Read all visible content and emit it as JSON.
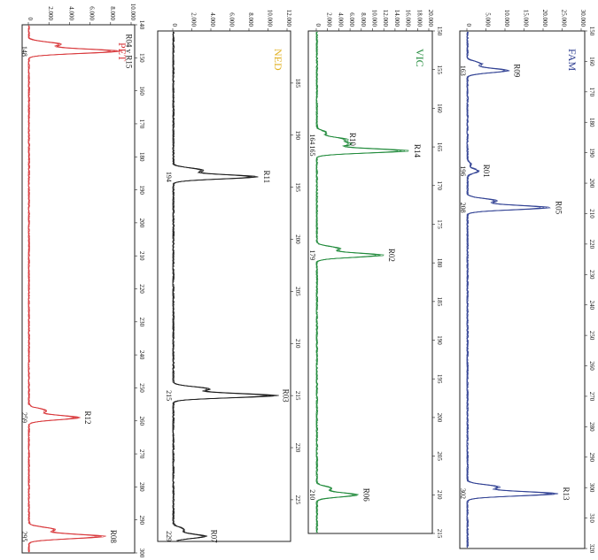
{
  "chart_data": [
    {
      "type": "line",
      "dye": "FAM",
      "color": "#2f3f92",
      "x_ticks": [
        "150",
        "160",
        "170",
        "180",
        "190",
        "200",
        "210",
        "220",
        "230",
        "240",
        "250",
        "260",
        "270",
        "280",
        "290",
        "300",
        "310",
        "320"
      ],
      "y_ticks": [
        "0",
        "5.000",
        "10.000",
        "15.000",
        "20.000",
        "25.000",
        "30.000"
      ],
      "xlim": [
        150,
        320
      ],
      "ylim": [
        0,
        30000
      ],
      "peaks": [
        {
          "marker": "R09",
          "size": "163",
          "x": 163,
          "height": 11000
        },
        {
          "marker": "R01",
          "size": "196",
          "x": 196,
          "height": 3000
        },
        {
          "marker": "R05",
          "size": "208",
          "x": 208,
          "height": 22000
        },
        {
          "marker": "R13",
          "size": "302",
          "x": 302,
          "height": 24000
        }
      ]
    },
    {
      "type": "line",
      "dye": "VIC",
      "color": "#1f8a3a",
      "x_ticks": [
        "150",
        "155",
        "160",
        "165",
        "170",
        "175",
        "180",
        "185",
        "190",
        "195",
        "200",
        "205",
        "210",
        "215"
      ],
      "y_ticks": [
        "0",
        "2.000",
        "4.000",
        "6.000",
        "8.000",
        "10.000",
        "12.000",
        "14.000",
        "16.000",
        "18.000",
        "20.000"
      ],
      "xlim": [
        150,
        215
      ],
      "ylim": [
        0,
        20000
      ],
      "peaks": [
        {
          "marker": "R10",
          "size": "164",
          "x": 164,
          "height": 5000
        },
        {
          "marker": "R14",
          "size": "165",
          "x": 165.5,
          "height": 16500
        },
        {
          "marker": "R02",
          "size": "179",
          "x": 179,
          "height": 12000
        },
        {
          "marker": "R06",
          "size": "210",
          "x": 210,
          "height": 7500
        }
      ]
    },
    {
      "type": "line",
      "dye": "NED",
      "color": "#1a1a1a",
      "title_color": "#e0b020",
      "x_ticks": [
        "185",
        "190",
        "195",
        "200",
        "205",
        "210",
        "215",
        "220",
        "225"
      ],
      "y_ticks": [
        "0",
        "2.000",
        "4.000",
        "6.000",
        "8.000",
        "10.000",
        "12.000"
      ],
      "xlim": [
        180,
        229
      ],
      "ylim": [
        0,
        12000
      ],
      "peaks": [
        {
          "marker": "R11",
          "size": "194",
          "x": 194,
          "height": 9000
        },
        {
          "marker": "R03",
          "size": "215",
          "x": 215,
          "height": 11000
        },
        {
          "marker": "R07",
          "size": "229",
          "x": 228.5,
          "height": 3500
        }
      ]
    },
    {
      "type": "line",
      "dye": "PET",
      "color": "#d8363a",
      "x_ticks": [
        "140",
        "150",
        "160",
        "170",
        "180",
        "190",
        "200",
        "210",
        "220",
        "230",
        "240",
        "250",
        "260",
        "270",
        "280",
        "290",
        "300"
      ],
      "y_ticks": [
        "0",
        "2.000",
        "4.000",
        "6.000",
        "8.000",
        "10.000"
      ],
      "xlim": [
        140,
        300
      ],
      "ylim": [
        0,
        10000
      ],
      "peaks": [
        {
          "marker": "R04 y R15",
          "size": "148",
          "x": 148,
          "height": 9000
        },
        {
          "marker": "R12",
          "size": "259",
          "x": 259,
          "height": 5000
        },
        {
          "marker": "R08",
          "size": "295",
          "x": 295,
          "height": 7500
        }
      ]
    }
  ]
}
